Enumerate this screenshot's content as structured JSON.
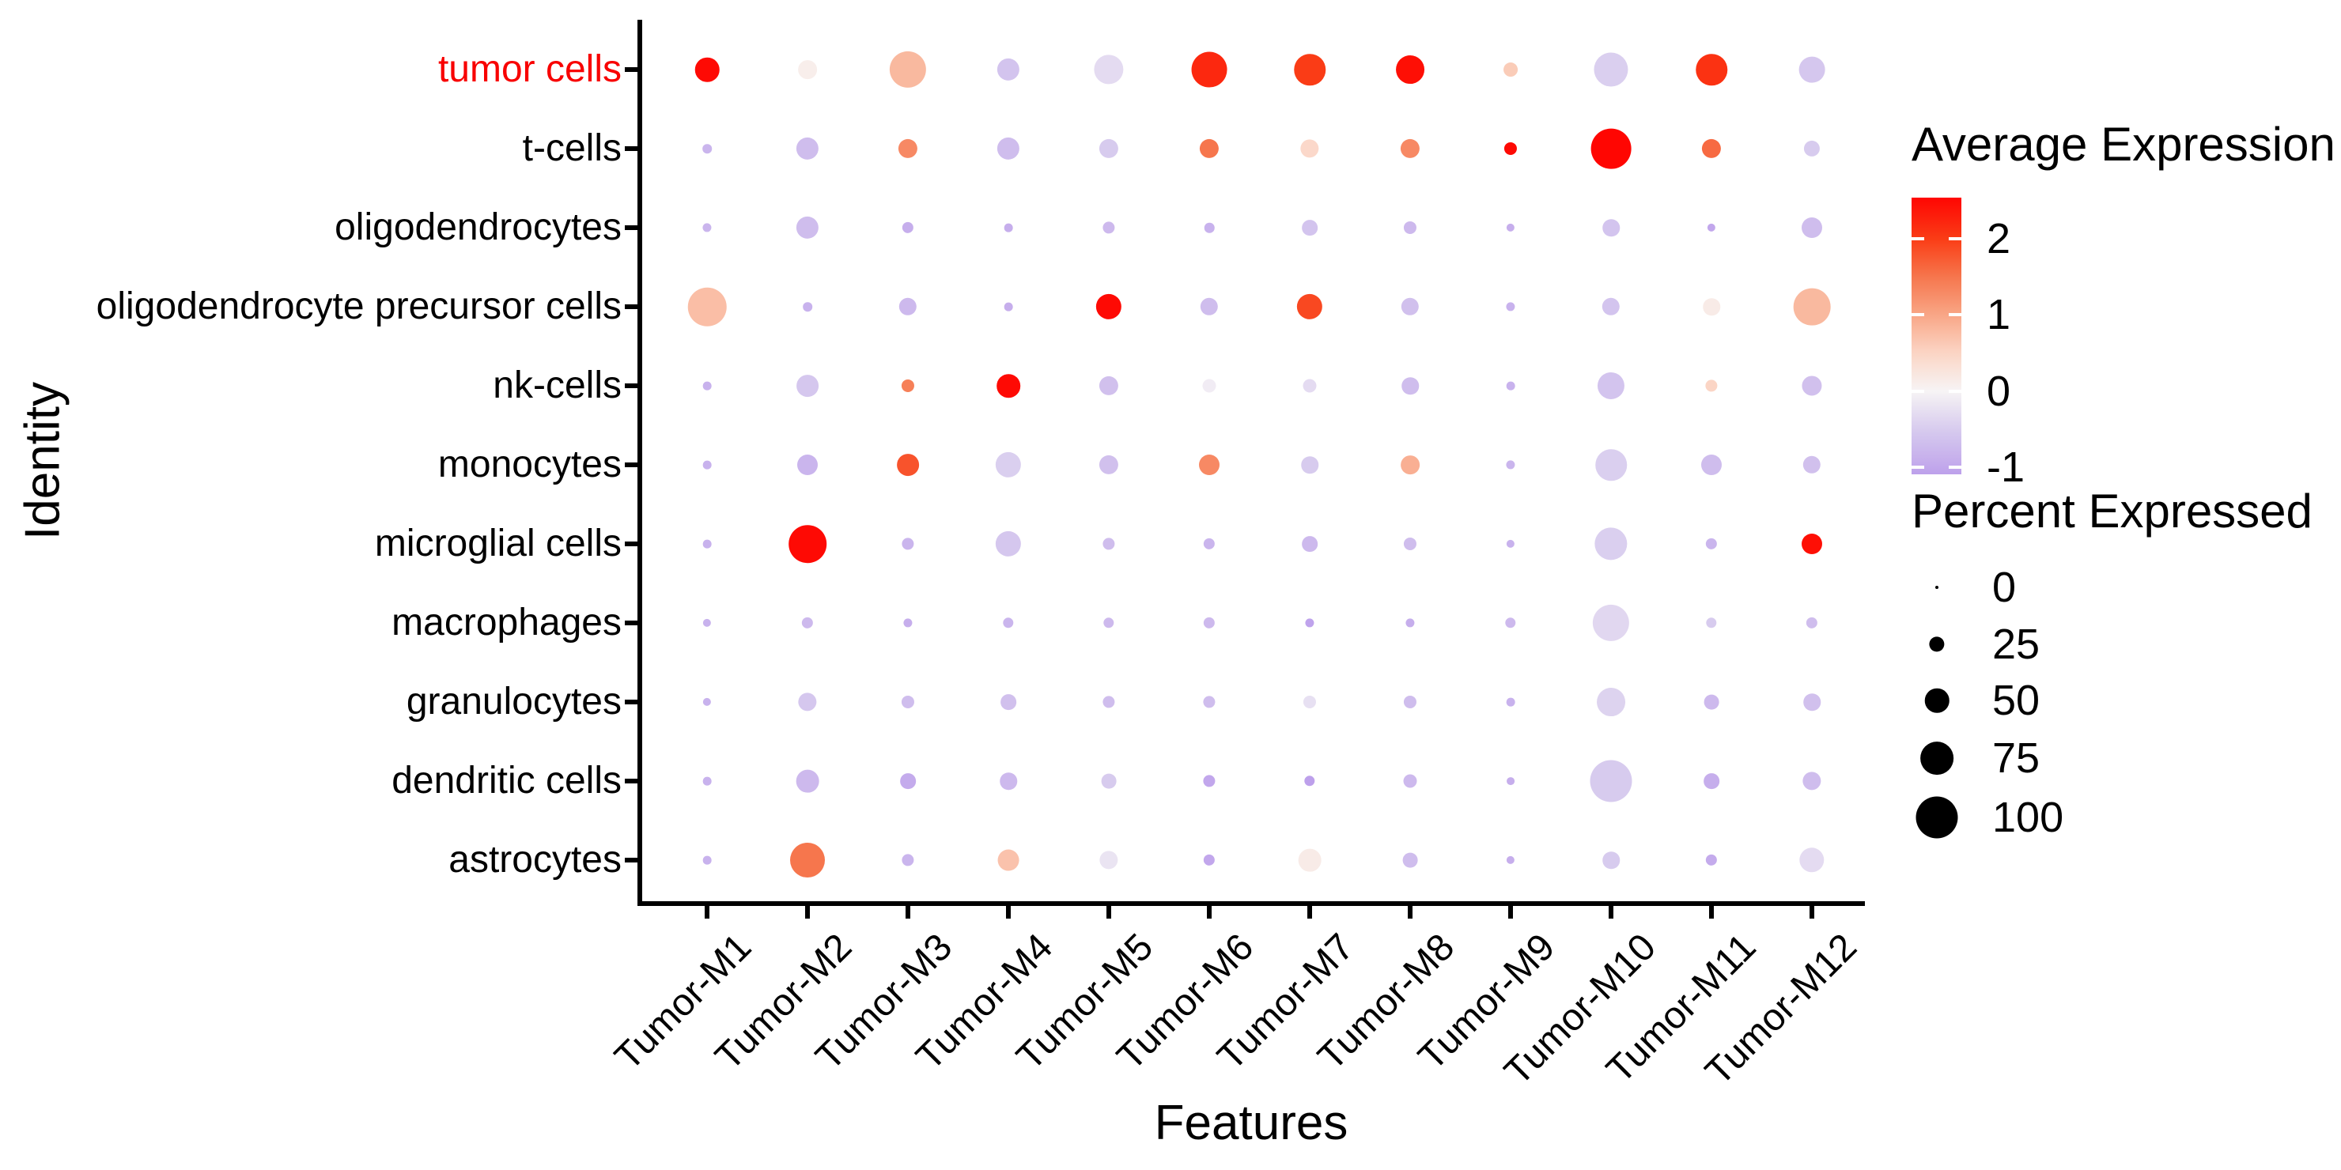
{
  "chart_data": {
    "type": "scatter",
    "subtype": "dot-plot",
    "title": "",
    "xlabel": "Features",
    "ylabel": "Identity",
    "x_categories": [
      "Tumor-M1",
      "Tumor-M2",
      "Tumor-M3",
      "Tumor-M4",
      "Tumor-M5",
      "Tumor-M6",
      "Tumor-M7",
      "Tumor-M8",
      "Tumor-M9",
      "Tumor-M10",
      "Tumor-M11",
      "Tumor-M12"
    ],
    "y_categories": [
      "tumor cells",
      "t-cells",
      "oligodendrocytes",
      "oligodendrocyte precursor cells",
      "nk-cells",
      "monocytes",
      "microglial cells",
      "macrophages",
      "granulocytes",
      "dendritic cells",
      "astrocytes"
    ],
    "highlighted_y": {
      "label": "tumor cells",
      "color": "#f80000"
    },
    "grid": false,
    "series": [
      {
        "name": "tumor cells",
        "percent_expressed": [
          50,
          35,
          85,
          45,
          65,
          82,
          70,
          62,
          22,
          78,
          70,
          55
        ],
        "average_expression": [
          2.5,
          0.1,
          0.8,
          -0.6,
          -0.3,
          2.2,
          2.0,
          2.45,
          0.6,
          -0.45,
          2.1,
          -0.55
        ]
      },
      {
        "name": "t-cells",
        "percent_expressed": [
          8,
          45,
          36,
          45,
          36,
          36,
          34,
          36,
          18,
          95,
          36,
          27
        ],
        "average_expression": [
          -0.8,
          -0.7,
          1.3,
          -0.7,
          -0.5,
          1.5,
          0.45,
          1.3,
          2.5,
          2.54,
          1.6,
          -0.5
        ]
      },
      {
        "name": "oligodendrocytes",
        "percent_expressed": [
          7,
          45,
          14,
          6,
          16,
          10,
          26,
          18,
          5,
          30,
          5,
          40
        ],
        "average_expression": [
          -0.8,
          -0.7,
          -0.9,
          -0.9,
          -0.75,
          -0.85,
          -0.6,
          -0.75,
          -0.9,
          -0.6,
          -1.0,
          -0.7
        ]
      },
      {
        "name": "oligodendrocyte precursor cells",
        "percent_expressed": [
          90,
          8,
          32,
          6,
          54,
          32,
          54,
          32,
          7,
          32,
          30,
          86
        ],
        "average_expression": [
          0.75,
          -0.85,
          -0.75,
          -0.9,
          2.5,
          -0.7,
          1.9,
          -0.65,
          -0.85,
          -0.6,
          0.15,
          0.8
        ]
      },
      {
        "name": "nk-cells",
        "percent_expressed": [
          6,
          44,
          18,
          48,
          36,
          20,
          20,
          30,
          6,
          58,
          16,
          38
        ],
        "average_expression": [
          -0.85,
          -0.55,
          1.4,
          2.5,
          -0.65,
          -0.1,
          -0.3,
          -0.7,
          -0.85,
          -0.6,
          0.5,
          -0.65
        ]
      },
      {
        "name": "monocytes",
        "percent_expressed": [
          6,
          40,
          44,
          54,
          36,
          40,
          30,
          35,
          7,
          70,
          40,
          32
        ],
        "average_expression": [
          -0.85,
          -0.8,
          1.8,
          -0.45,
          -0.65,
          1.3,
          -0.5,
          0.9,
          -0.8,
          -0.45,
          -0.7,
          -0.65
        ]
      },
      {
        "name": "microglial cells",
        "percent_expressed": [
          6,
          88,
          16,
          54,
          16,
          14,
          26,
          18,
          5,
          74,
          14,
          40
        ],
        "average_expression": [
          -0.85,
          2.5,
          -0.8,
          -0.55,
          -0.7,
          -0.8,
          -0.75,
          -0.7,
          -0.85,
          -0.45,
          -0.8,
          2.45
        ]
      },
      {
        "name": "macrophages",
        "percent_expressed": [
          5,
          14,
          7,
          12,
          12,
          14,
          7,
          7,
          12,
          85,
          12,
          14
        ],
        "average_expression": [
          -0.85,
          -0.75,
          -0.9,
          -0.8,
          -0.75,
          -0.75,
          -1.05,
          -0.9,
          -0.75,
          -0.35,
          -0.5,
          -0.7
        ]
      },
      {
        "name": "granulocytes",
        "percent_expressed": [
          5,
          34,
          18,
          26,
          16,
          16,
          18,
          18,
          6,
          62,
          24,
          30
        ],
        "average_expression": [
          -0.85,
          -0.55,
          -0.7,
          -0.65,
          -0.7,
          -0.7,
          -0.25,
          -0.7,
          -0.85,
          -0.4,
          -0.75,
          -0.65
        ]
      },
      {
        "name": "dendritic cells",
        "percent_expressed": [
          6,
          46,
          26,
          30,
          24,
          16,
          12,
          20,
          4,
          100,
          26,
          34
        ],
        "average_expression": [
          -0.85,
          -0.75,
          -0.95,
          -0.75,
          -0.5,
          -1.0,
          -1.09,
          -0.75,
          -0.9,
          -0.5,
          -0.9,
          -0.7
        ]
      },
      {
        "name": "astrocytes",
        "percent_expressed": [
          6,
          80,
          16,
          42,
          34,
          14,
          46,
          24,
          5,
          30,
          14,
          52
        ],
        "average_expression": [
          -0.85,
          1.5,
          -0.8,
          0.7,
          -0.2,
          -1.0,
          0.15,
          -0.7,
          -0.9,
          -0.5,
          -0.95,
          -0.3
        ]
      }
    ],
    "color_legend": {
      "title": "Average Expression",
      "tick_labels": [
        "2",
        "1",
        "0",
        "-1"
      ],
      "tick_values": [
        2,
        1,
        0,
        -1
      ],
      "value_range_top_to_bottom": [
        2.54,
        -1.09
      ],
      "high_color": "#ff0000",
      "mid_color": "#f7f4f4",
      "low_color": "#a682e8",
      "legend_position": "right"
    },
    "size_legend": {
      "title": "Percent Expressed",
      "tick_labels": [
        "0",
        "25",
        "50",
        "75",
        "100"
      ],
      "tick_values": [
        0,
        25,
        50,
        75,
        100
      ],
      "dot_color": "#000000"
    }
  }
}
